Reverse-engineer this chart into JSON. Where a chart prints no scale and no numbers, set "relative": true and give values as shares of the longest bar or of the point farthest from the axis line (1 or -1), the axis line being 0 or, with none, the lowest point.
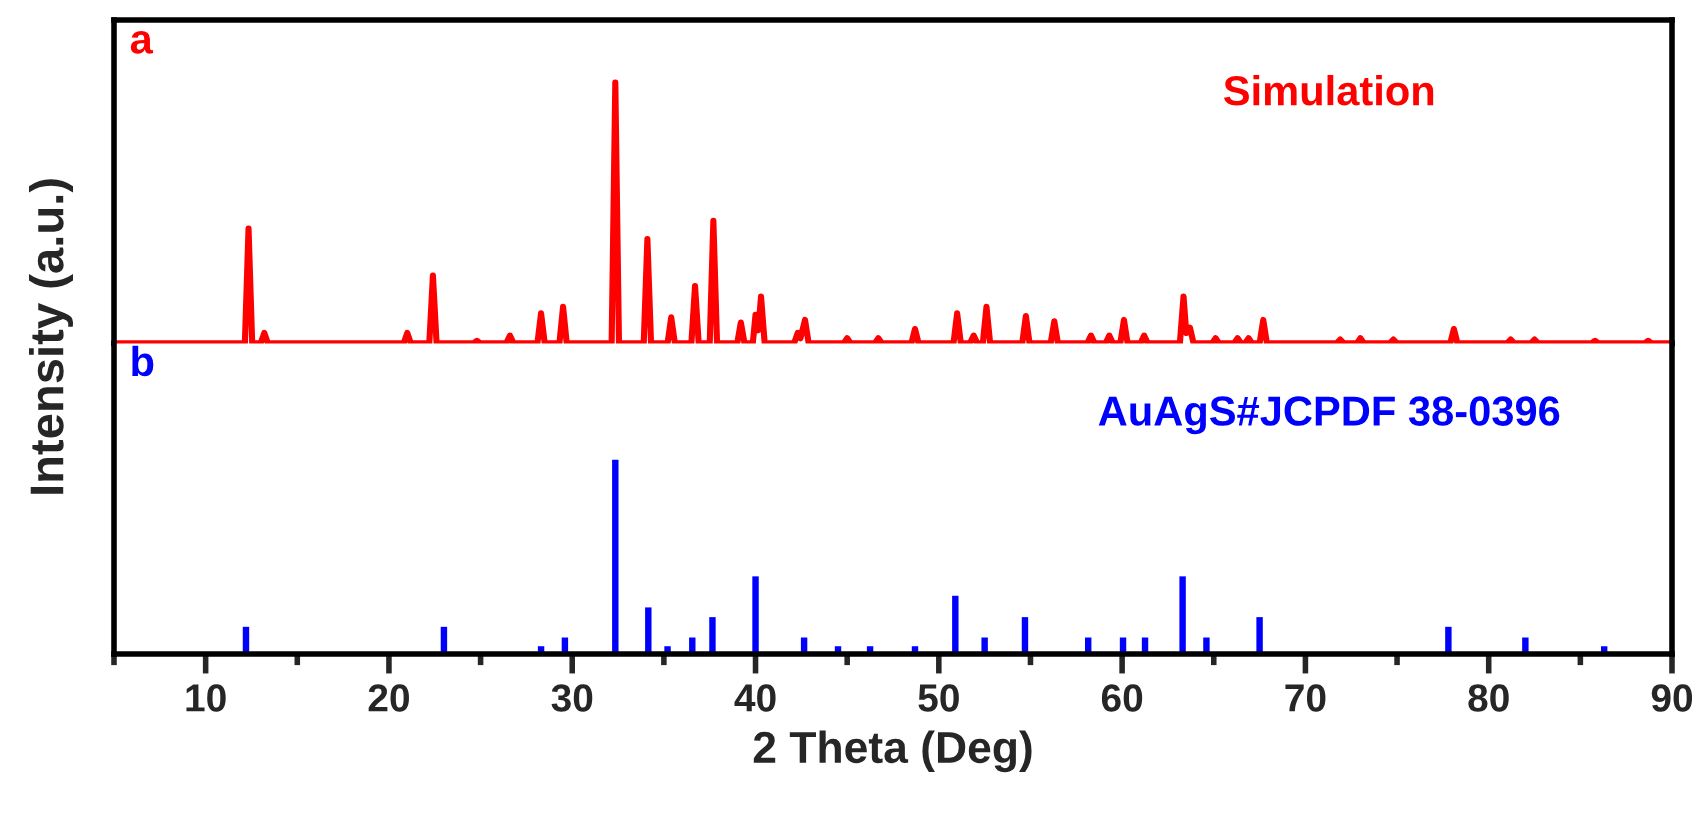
{
  "chart_data": [
    {
      "type": "line",
      "relative": true,
      "xlim": [
        5,
        90
      ],
      "tick_labels": false,
      "ylabel": "Intensity (a.u.)",
      "annotations": [
        "a",
        "Simulation"
      ],
      "series": [
        {
          "color": "#ff0000",
          "x": [
            5,
            12.14,
            12.34,
            12.54,
            13.0,
            13.2,
            13.4,
            20.8,
            21.0,
            21.2,
            22.2,
            22.4,
            22.6,
            24.6,
            24.8,
            25.0,
            26.4,
            26.6,
            26.8,
            28.1,
            28.3,
            28.5,
            29.3,
            29.5,
            29.7,
            32.15,
            32.35,
            32.55,
            33.9,
            34.1,
            34.3,
            35.2,
            35.4,
            35.6,
            36.5,
            36.7,
            36.9,
            37.5,
            37.7,
            37.9,
            39.0,
            39.2,
            39.4,
            39.85,
            40.0,
            40.15,
            40.3,
            40.5,
            42.1,
            42.3,
            42.45,
            42.7,
            42.9,
            44.8,
            45.0,
            45.2,
            46.5,
            46.7,
            46.9,
            48.5,
            48.7,
            48.9,
            50.8,
            51.0,
            51.2,
            51.7,
            51.9,
            52.1,
            52.4,
            52.6,
            52.8,
            54.55,
            54.75,
            54.95,
            56.1,
            56.3,
            56.5,
            58.1,
            58.3,
            58.5,
            59.1,
            59.3,
            59.5,
            59.9,
            60.1,
            60.3,
            61.0,
            61.2,
            61.4,
            63.15,
            63.35,
            63.5,
            63.7,
            63.9,
            64.9,
            65.1,
            65.3,
            66.1,
            66.3,
            66.5,
            66.7,
            66.9,
            67.1,
            67.5,
            67.7,
            67.9,
            71.7,
            71.9,
            72.1,
            72.8,
            73.0,
            73.2,
            74.6,
            74.8,
            75.0,
            77.9,
            78.1,
            78.3,
            81.0,
            81.2,
            81.4,
            82.3,
            82.5,
            82.7,
            85.6,
            85.8,
            86.0,
            88.5,
            88.7,
            88.9,
            90
          ],
          "values": [
            0,
            0,
            0.44,
            0,
            0,
            0.04,
            0,
            0,
            0.04,
            0,
            0,
            0.26,
            0,
            0,
            0.01,
            0,
            0,
            0.03,
            0,
            0,
            0.115,
            0,
            0,
            0.14,
            0,
            0,
            1.0,
            0,
            0,
            0.4,
            0,
            0,
            0.1,
            0,
            0,
            0.22,
            0,
            0,
            0.47,
            0,
            0,
            0.08,
            0,
            0,
            0.11,
            0.05,
            0.18,
            0,
            0,
            0.04,
            0.02,
            0.09,
            0,
            0,
            0.02,
            0,
            0,
            0.02,
            0,
            0,
            0.055,
            0,
            0,
            0.115,
            0,
            0,
            0.03,
            0,
            0,
            0.14,
            0,
            0,
            0.105,
            0,
            0,
            0.085,
            0,
            0,
            0.03,
            0,
            0,
            0.03,
            0,
            0,
            0.09,
            0,
            0,
            0.03,
            0,
            0,
            0.18,
            0.04,
            0.06,
            0,
            0,
            0.02,
            0,
            0,
            0.02,
            0,
            0,
            0.02,
            0,
            0,
            0.09,
            0,
            0,
            0.015,
            0,
            0,
            0.02,
            0,
            0,
            0.015,
            0,
            0,
            0.055,
            0,
            0,
            0.015,
            0,
            0,
            0.015,
            0,
            0,
            0.01,
            0,
            0,
            0.01,
            0,
            0
          ]
        }
      ]
    },
    {
      "type": "bar",
      "relative": true,
      "xlim": [
        5,
        90
      ],
      "tick_labels": "x",
      "xlabel": "2 Theta (Deg)",
      "annotations": [
        "b",
        "AuAgS#JCPDF 38-0396"
      ],
      "xticks": [
        {
          "value": 5,
          "label": null
        },
        10,
        {
          "value": 15,
          "label": null
        },
        20,
        {
          "value": 25,
          "label": null
        },
        30,
        {
          "value": 35,
          "label": null
        },
        40,
        {
          "value": 45,
          "label": null
        },
        50,
        {
          "value": 55,
          "label": null
        },
        60,
        {
          "value": 65,
          "label": null
        },
        70,
        {
          "value": 75,
          "label": null
        },
        80,
        {
          "value": 85,
          "label": null
        },
        90
      ],
      "series": [
        {
          "color": "#0000ff",
          "x": [
            12.2,
            23.0,
            28.3,
            29.6,
            32.35,
            34.15,
            35.2,
            36.55,
            37.65,
            40.0,
            42.65,
            44.5,
            46.25,
            48.7,
            50.9,
            52.5,
            54.7,
            58.15,
            60.05,
            61.25,
            63.3,
            64.6,
            67.5,
            77.8,
            82.0,
            86.3
          ],
          "values": [
            0.14,
            0.14,
            0.04,
            0.085,
            1.0,
            0.24,
            0.04,
            0.085,
            0.19,
            0.4,
            0.085,
            0.04,
            0.04,
            0.04,
            0.3,
            0.085,
            0.19,
            0.085,
            0.085,
            0.085,
            0.4,
            0.085,
            0.19,
            0.14,
            0.085,
            0.04
          ]
        }
      ]
    }
  ]
}
